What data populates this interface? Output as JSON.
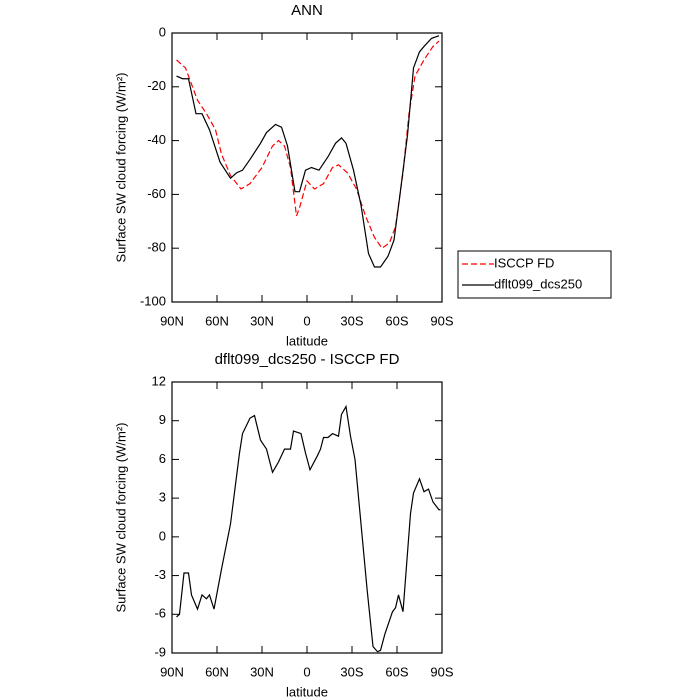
{
  "chart_data": [
    {
      "type": "line",
      "title": "ANN",
      "x_label": "latitude",
      "y_label": "Surface SW cloud forcing (W/m²)",
      "xlim": [
        90,
        -90
      ],
      "xticks": [
        {
          "value": 90,
          "label": "90N"
        },
        {
          "value": 60,
          "label": "60N"
        },
        {
          "value": 30,
          "label": "30N"
        },
        0,
        {
          "value": -30,
          "label": "30S"
        },
        {
          "value": -60,
          "label": "60S"
        },
        {
          "value": -90,
          "label": "90S"
        }
      ],
      "ylim": [
        -100,
        0
      ],
      "yticks": [
        0,
        -20,
        -40,
        -60,
        -80,
        -100
      ],
      "legend": "right",
      "series": [
        {
          "name": "ISCCP FD",
          "color": "#ff0000",
          "dash": true,
          "x": [
            87,
            81,
            73,
            67,
            61,
            57,
            51,
            44,
            38,
            30,
            23,
            19,
            15,
            11,
            7,
            5,
            0,
            -5,
            -11,
            -17,
            -21,
            -27,
            -33,
            -39,
            -45,
            -50,
            -55,
            -59,
            -64,
            -68,
            -72,
            -78,
            -84,
            -88
          ],
          "values": [
            -10,
            -13,
            -25,
            -30,
            -36,
            -45,
            -53,
            -58,
            -56,
            -50,
            -42,
            -40,
            -42,
            -50,
            -68,
            -65,
            -55,
            -58,
            -56,
            -50,
            -49,
            -52,
            -58,
            -68,
            -76,
            -80,
            -78,
            -72,
            -52,
            -30,
            -16,
            -10,
            -5,
            -3
          ]
        },
        {
          "name": "dflt099_dcs250",
          "color": "#000000",
          "dash": false,
          "x": [
            87,
            83,
            79,
            74,
            70,
            65,
            58,
            51,
            47,
            43,
            38,
            31,
            27,
            21,
            17,
            13,
            8,
            5,
            1,
            -3,
            -8,
            -14,
            -19,
            -23,
            -26,
            -31,
            -36,
            -41,
            -45,
            -49,
            -54,
            -58,
            -62,
            -67,
            -71,
            -75,
            -78,
            -83,
            -88
          ],
          "values": [
            -16,
            -17,
            -17,
            -30,
            -30,
            -36,
            -48,
            -54,
            -52,
            -51,
            -47,
            -41,
            -37,
            -34,
            -35,
            -42,
            -59,
            -59,
            -51,
            -50,
            -51,
            -46,
            -41,
            -39,
            -41,
            -51,
            -64,
            -82,
            -87,
            -87,
            -83,
            -77,
            -60,
            -38,
            -13,
            -7,
            -5,
            -2,
            -1
          ]
        }
      ]
    },
    {
      "type": "line",
      "title": "dflt099_dcs250 - ISCCP FD",
      "x_label": "latitude",
      "y_label": "Surface SW cloud forcing (W/m²)",
      "xlim": [
        90,
        -90
      ],
      "xticks": [
        {
          "value": 90,
          "label": "90N"
        },
        {
          "value": 60,
          "label": "60N"
        },
        {
          "value": 30,
          "label": "30N"
        },
        0,
        {
          "value": -30,
          "label": "30S"
        },
        {
          "value": -60,
          "label": "60S"
        },
        {
          "value": -90,
          "label": "90S"
        }
      ],
      "ylim": [
        -9,
        12
      ],
      "yticks": [
        12,
        9,
        6,
        3,
        0,
        -3,
        -6,
        -9
      ],
      "series": [
        {
          "color": "#000000",
          "dash": false,
          "x": [
            87,
            85,
            82,
            79,
            77,
            73,
            70,
            67,
            65,
            62,
            57,
            51,
            45,
            43,
            38,
            35,
            31,
            27,
            23,
            19,
            15,
            11,
            9,
            4,
            1,
            -2,
            -7,
            -9,
            -11,
            -14,
            -17,
            -21,
            -23,
            -26,
            -29,
            -32,
            -36,
            -40,
            -44,
            -47,
            -49,
            -52,
            -57,
            -59,
            -61,
            -64,
            -69,
            -71,
            -75,
            -78,
            -81,
            -84,
            -88,
            -89
          ],
          "values": [
            -6.2,
            -6,
            -2.8,
            -2.8,
            -4.5,
            -5.6,
            -4.5,
            -4.8,
            -4.5,
            -5.6,
            -2.5,
            1,
            6.5,
            8,
            9.2,
            9.4,
            7.5,
            6.8,
            5,
            5.8,
            6.8,
            6.8,
            8.2,
            8,
            6.5,
            5.2,
            6.3,
            6.8,
            7.7,
            7.7,
            8,
            7.8,
            9.5,
            10.1,
            7.8,
            6,
            1,
            -4,
            -8.5,
            -8.9,
            -8.8,
            -7.5,
            -5.8,
            -5.5,
            -4.5,
            -5.8,
            1.8,
            3.4,
            4.5,
            3.5,
            3.7,
            2.7,
            2.1,
            2.1
          ]
        }
      ]
    }
  ]
}
